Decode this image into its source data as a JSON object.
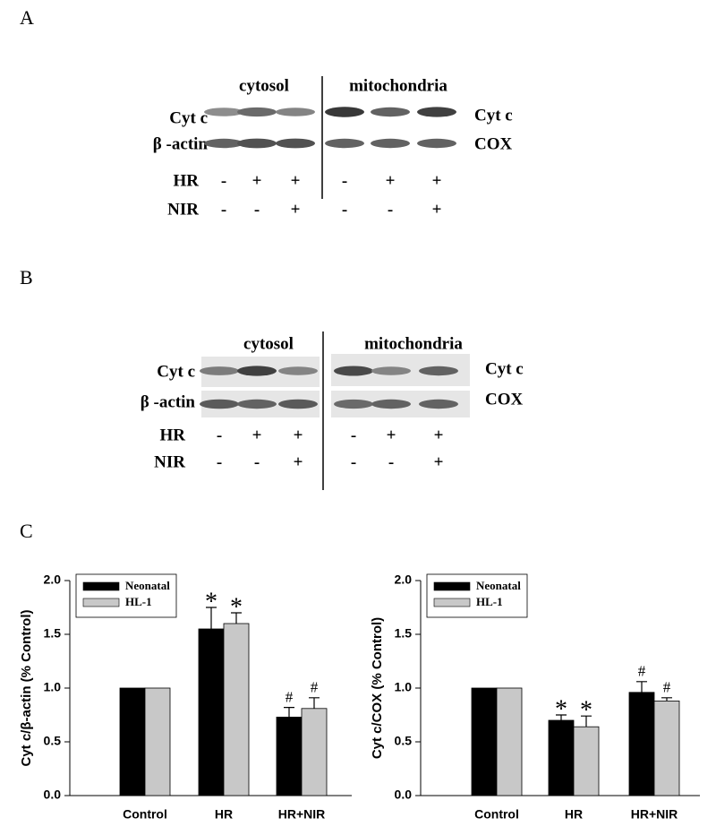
{
  "panels": {
    "A": {
      "label": "A",
      "header_left": "cytosol",
      "header_right": "mitochondria",
      "row_left": [
        "Cyt c",
        "β -actin"
      ],
      "row_right": [
        "Cyt c",
        "COX"
      ],
      "conditions": [
        {
          "name": "HR",
          "signs": [
            "-",
            "+",
            "+",
            "-",
            "+",
            "+"
          ]
        },
        {
          "name": "NIR",
          "signs": [
            "-",
            "-",
            "+",
            "-",
            "-",
            "+"
          ]
        }
      ]
    },
    "B": {
      "label": "B",
      "header_left": "cytosol",
      "header_right": "mitochondria",
      "row_left": [
        "Cyt c",
        "β -actin"
      ],
      "row_right": [
        "Cyt c",
        "COX"
      ],
      "conditions": [
        {
          "name": "HR",
          "signs": [
            "-",
            "+",
            "+",
            "-",
            "+",
            "+"
          ]
        },
        {
          "name": "NIR",
          "signs": [
            "-",
            "-",
            "+",
            "-",
            "-",
            "+"
          ]
        }
      ]
    },
    "C": {
      "label": "C"
    }
  },
  "chart_data": [
    {
      "type": "bar",
      "y_label": "Cyt c/β-actin (% Control)",
      "categories": [
        "Control",
        "HR",
        "HR+NIR"
      ],
      "series": [
        {
          "name": "Neonatal",
          "color": "#000000",
          "values": [
            1,
            1.55,
            0.73
          ],
          "errors": [
            0,
            0.2,
            0.09
          ],
          "markers": [
            null,
            "*",
            "#"
          ]
        },
        {
          "name": "HL-1",
          "color": "#c8c8c8",
          "values": [
            1,
            1.6,
            0.81
          ],
          "errors": [
            0,
            0.1,
            0.1
          ],
          "markers": [
            null,
            "*",
            "#"
          ]
        }
      ],
      "ylim": [
        0,
        2
      ],
      "yticks": [
        {
          "value": 0,
          "label": "0.0"
        },
        0.5,
        {
          "value": 1,
          "label": "1.0"
        },
        1.5,
        {
          "value": 2,
          "label": "2.0"
        }
      ],
      "legend": "top-left"
    },
    {
      "type": "bar",
      "y_label": "Cyt c/COX (% Control)",
      "categories": [
        "Control",
        "HR",
        "HR+NIR"
      ],
      "series": [
        {
          "name": "Neonatal",
          "color": "#000000",
          "values": [
            1,
            0.7,
            0.96
          ],
          "errors": [
            0,
            0.05,
            0.1
          ],
          "markers": [
            null,
            "*",
            "#"
          ]
        },
        {
          "name": "HL-1",
          "color": "#c8c8c8",
          "values": [
            1,
            0.64,
            0.88
          ],
          "errors": [
            0,
            0.1,
            0.03
          ],
          "markers": [
            null,
            "*",
            "#"
          ]
        }
      ],
      "ylim": [
        0,
        2
      ],
      "yticks": [
        {
          "value": 0,
          "label": "0.0"
        },
        0.5,
        {
          "value": 1,
          "label": "1.0"
        },
        1.5,
        {
          "value": 2,
          "label": "2.0"
        }
      ],
      "legend": "top-left"
    }
  ]
}
